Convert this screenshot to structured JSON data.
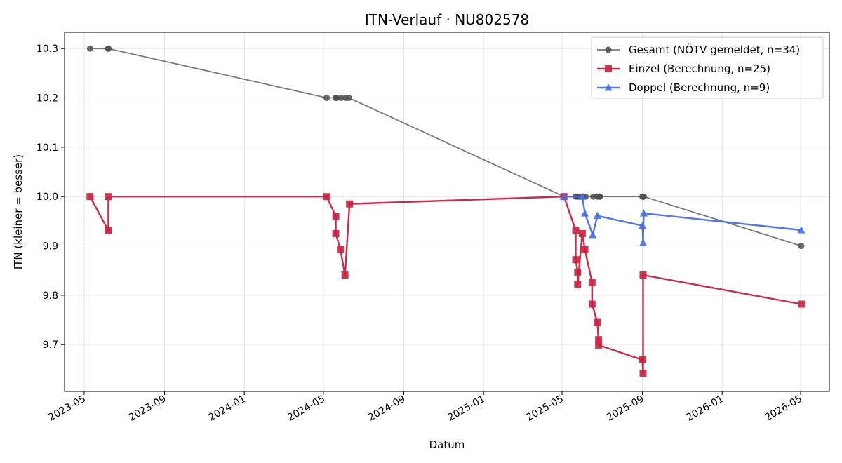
{
  "chart_data": {
    "type": "line",
    "title": "ITN-Verlauf · NU802578",
    "xlabel": "Datum",
    "ylabel": "ITN  (kleiner = besser)",
    "x_axis": "date",
    "xlim": [
      "2023-04-01",
      "2026-06-14"
    ],
    "ylim": [
      9.605,
      10.333
    ],
    "x_ticks": [
      "2023-05",
      "2023-09",
      "2024-01",
      "2024-05",
      "2024-09",
      "2025-01",
      "2025-05",
      "2025-09",
      "2026-01",
      "2026-05"
    ],
    "y_ticks": [
      9.7,
      9.8,
      9.9,
      10.0,
      10.1,
      10.2,
      10.3
    ],
    "grid": true,
    "legend_position": "top-right",
    "series": [
      {
        "name": "Gesamt (NÖTV gemeldet, n=34)",
        "color": "#4d4d4d",
        "marker": "circle",
        "points": [
          {
            "x": "2023-05-10",
            "y": 10.3
          },
          {
            "x": "2023-06-07",
            "y": 10.3
          },
          {
            "x": "2023-06-07",
            "y": 10.3
          },
          {
            "x": "2024-05-06",
            "y": 10.2
          },
          {
            "x": "2024-05-20",
            "y": 10.2
          },
          {
            "x": "2024-05-21",
            "y": 10.2
          },
          {
            "x": "2024-05-28",
            "y": 10.2
          },
          {
            "x": "2024-06-04",
            "y": 10.2
          },
          {
            "x": "2024-06-09",
            "y": 10.2
          },
          {
            "x": "2025-05-04",
            "y": 10.0
          },
          {
            "x": "2025-05-22",
            "y": 10.0
          },
          {
            "x": "2025-05-25",
            "y": 10.0
          },
          {
            "x": "2025-05-28",
            "y": 10.0
          },
          {
            "x": "2025-06-02",
            "y": 10.0
          },
          {
            "x": "2025-06-06",
            "y": 10.0
          },
          {
            "x": "2025-06-18",
            "y": 10.0
          },
          {
            "x": "2025-06-24",
            "y": 10.0
          },
          {
            "x": "2025-06-27",
            "y": 10.0
          },
          {
            "x": "2025-06-28",
            "y": 10.0
          },
          {
            "x": "2025-09-01",
            "y": 10.0
          },
          {
            "x": "2025-09-02",
            "y": 10.0
          },
          {
            "x": "2025-09-03",
            "y": 10.0
          },
          {
            "x": "2026-05-02",
            "y": 9.9
          }
        ]
      },
      {
        "name": "Einzel (Berechnung, n=25)",
        "color": "#c8203e",
        "marker": "square",
        "points": [
          {
            "x": "2023-05-10",
            "y": 10.0
          },
          {
            "x": "2023-06-07",
            "y": 9.931
          },
          {
            "x": "2023-06-07",
            "y": 10.0
          },
          {
            "x": "2024-05-06",
            "y": 10.0
          },
          {
            "x": "2024-05-20",
            "y": 9.96
          },
          {
            "x": "2024-05-20",
            "y": 9.925
          },
          {
            "x": "2024-05-27",
            "y": 9.893
          },
          {
            "x": "2024-06-03",
            "y": 9.841
          },
          {
            "x": "2024-06-10",
            "y": 9.985
          },
          {
            "x": "2025-05-04",
            "y": 10.0
          },
          {
            "x": "2025-05-22",
            "y": 9.931
          },
          {
            "x": "2025-05-22",
            "y": 9.872
          },
          {
            "x": "2025-05-25",
            "y": 9.847
          },
          {
            "x": "2025-05-25",
            "y": 9.822
          },
          {
            "x": "2025-06-01",
            "y": 9.925
          },
          {
            "x": "2025-06-05",
            "y": 9.893
          },
          {
            "x": "2025-06-16",
            "y": 9.826
          },
          {
            "x": "2025-06-16",
            "y": 9.782
          },
          {
            "x": "2025-06-24",
            "y": 9.745
          },
          {
            "x": "2025-06-26",
            "y": 9.71
          },
          {
            "x": "2025-06-26",
            "y": 9.699
          },
          {
            "x": "2025-09-01",
            "y": 9.669
          },
          {
            "x": "2025-09-02",
            "y": 9.642
          },
          {
            "x": "2025-09-02",
            "y": 9.841
          },
          {
            "x": "2026-05-02",
            "y": 9.782
          }
        ]
      },
      {
        "name": "Doppel (Berechnung, n=9)",
        "color": "#4a6ee8",
        "marker": "triangle",
        "points": [
          {
            "x": "2025-05-04",
            "y": 10.0
          },
          {
            "x": "2025-06-01",
            "y": 10.0
          },
          {
            "x": "2025-06-05",
            "y": 9.966
          },
          {
            "x": "2025-06-17",
            "y": 9.922
          },
          {
            "x": "2025-06-24",
            "y": 9.961
          },
          {
            "x": "2025-09-01",
            "y": 9.941
          },
          {
            "x": "2025-09-02",
            "y": 9.906
          },
          {
            "x": "2025-09-03",
            "y": 9.966
          },
          {
            "x": "2026-05-02",
            "y": 9.932
          }
        ]
      }
    ]
  }
}
